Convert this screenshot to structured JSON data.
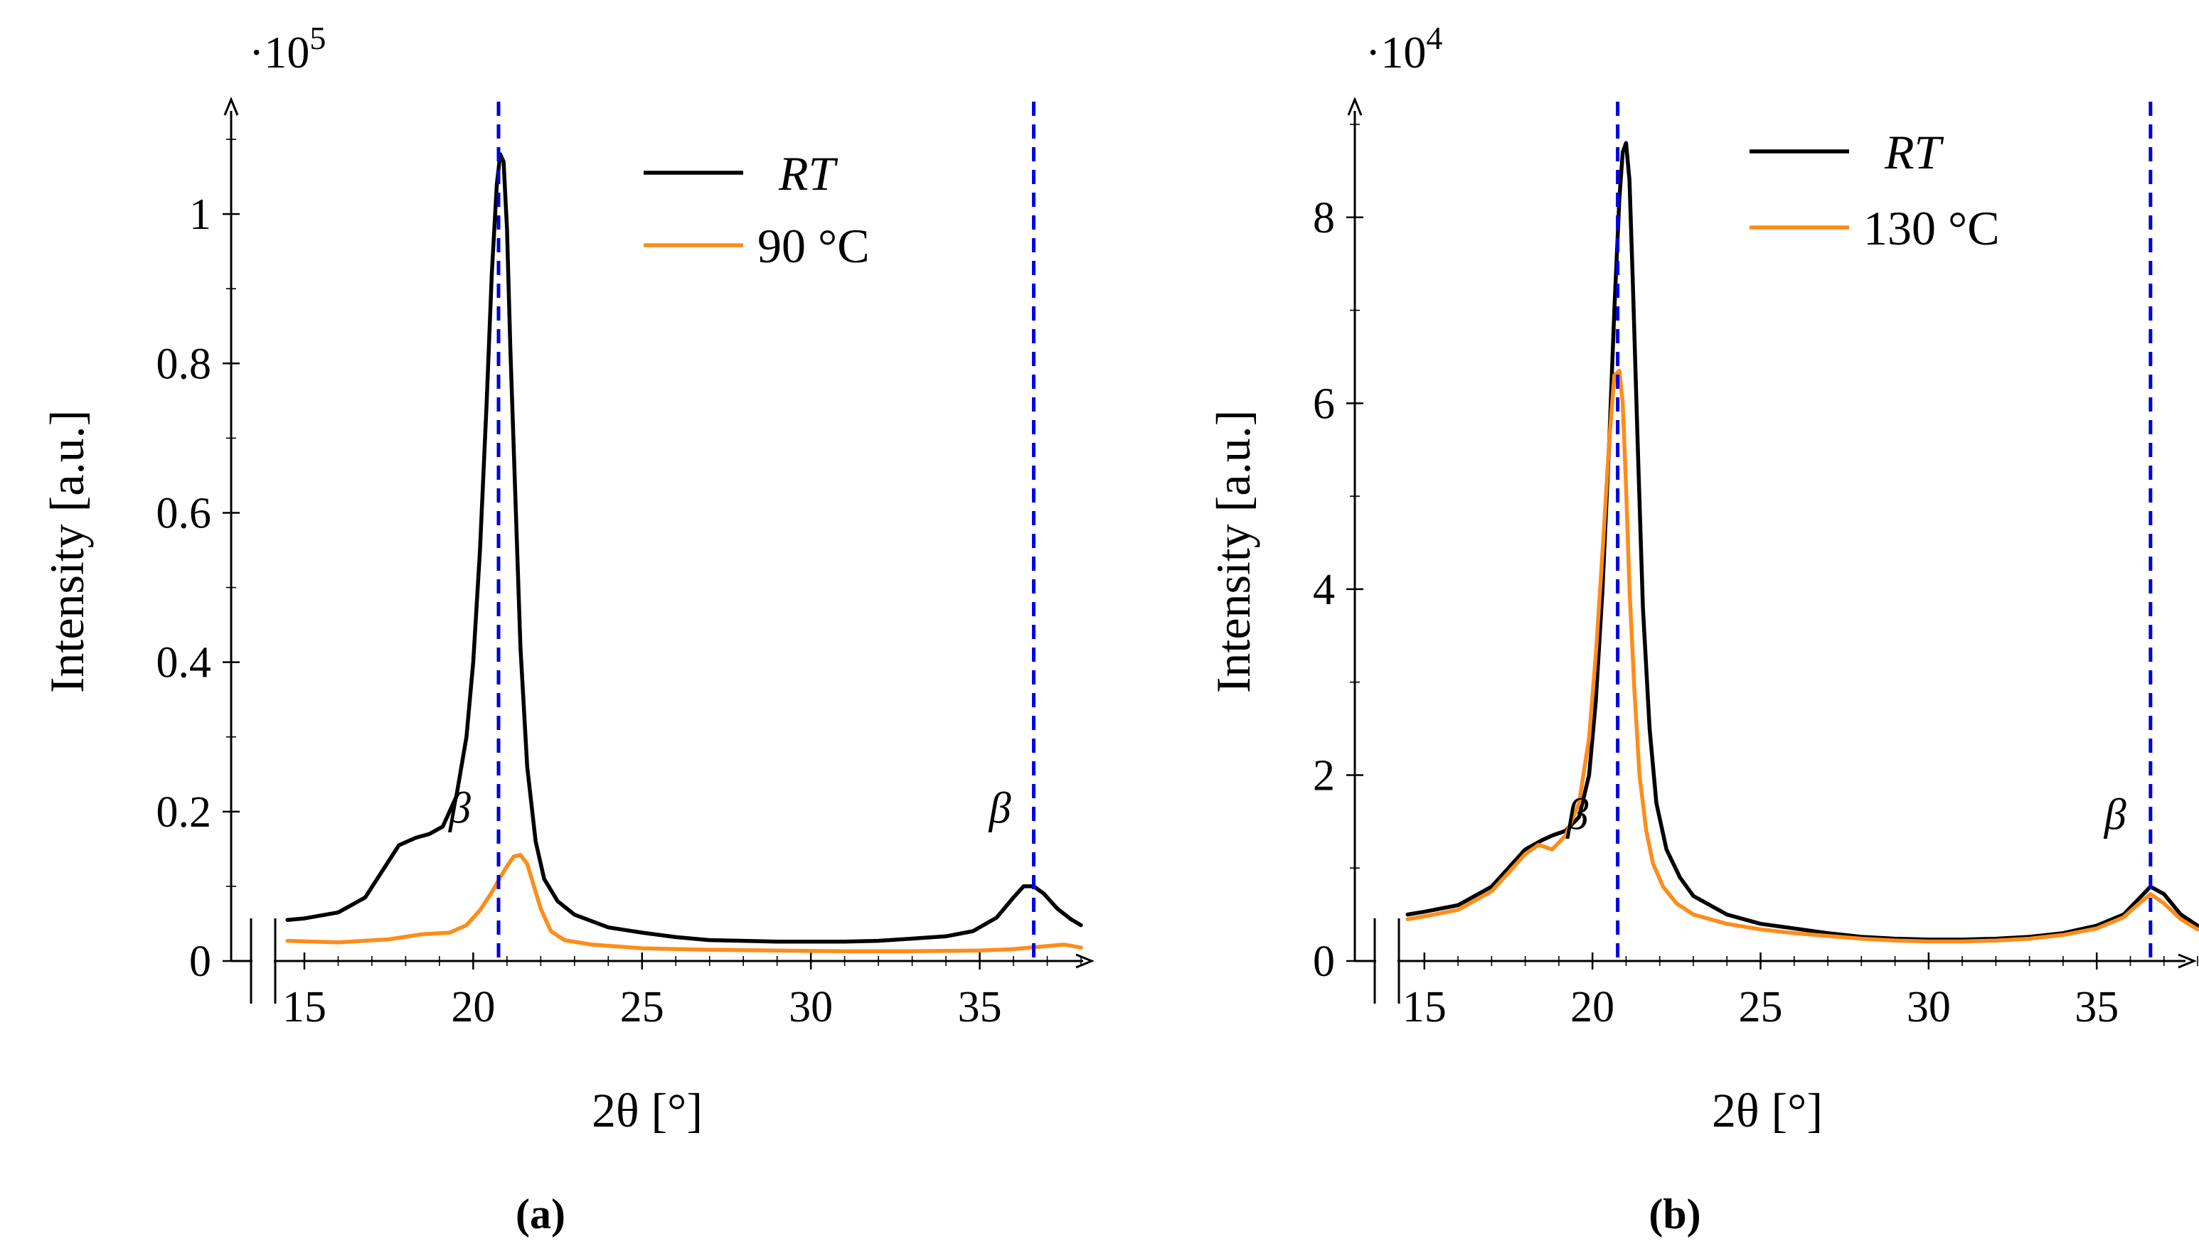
{
  "chart_data": [
    {
      "type": "line",
      "caption": "(a)",
      "caption_letter": "a",
      "multiplier": "·10",
      "multiplier_exp": "5",
      "xlabel": "2θ [°]",
      "ylabel": "Intensity [a.u.]",
      "xlim": [
        14.2,
        38
      ],
      "ylim": [
        0,
        1.12
      ],
      "x_ticks": [
        15,
        20,
        25,
        30,
        35
      ],
      "y_ticks": [
        0,
        0.2,
        0.4,
        0.6,
        0.8,
        1
      ],
      "y_tick_labels": [
        "0",
        "0.2",
        "0.4",
        "0.6",
        "0.8",
        "1"
      ],
      "vlines": [
        20.75,
        36.6
      ],
      "beta_labels": [
        {
          "x": 19.6,
          "y": 0.185,
          "text": "β"
        },
        {
          "x": 35.6,
          "y": 0.185,
          "text": "β"
        }
      ],
      "legend_position": "top-right",
      "series": [
        {
          "name": "RT",
          "italic": true,
          "color": "#000000",
          "x": [
            14.5,
            15,
            16,
            16.8,
            17.3,
            17.8,
            18.3,
            18.7,
            19.1,
            19.5,
            19.8,
            20.0,
            20.2,
            20.4,
            20.55,
            20.7,
            20.8,
            20.9,
            21.0,
            21.1,
            21.25,
            21.4,
            21.6,
            21.85,
            22.1,
            22.5,
            23,
            24,
            25,
            26,
            27,
            28,
            29,
            30,
            31,
            32,
            33,
            34,
            34.8,
            35.5,
            36,
            36.3,
            36.6,
            36.9,
            37.3,
            37.7,
            38
          ],
          "values": [
            0.055,
            0.057,
            0.065,
            0.085,
            0.12,
            0.155,
            0.165,
            0.17,
            0.18,
            0.22,
            0.3,
            0.4,
            0.55,
            0.75,
            0.92,
            1.04,
            1.08,
            1.07,
            0.98,
            0.82,
            0.62,
            0.42,
            0.26,
            0.16,
            0.11,
            0.08,
            0.062,
            0.045,
            0.038,
            0.032,
            0.028,
            0.027,
            0.026,
            0.026,
            0.026,
            0.027,
            0.03,
            0.033,
            0.04,
            0.058,
            0.085,
            0.1,
            0.1,
            0.09,
            0.07,
            0.056,
            0.048
          ]
        },
        {
          "name": "90 °C",
          "italic": false,
          "color": "#ff8c1a",
          "x": [
            14.5,
            16,
            17.5,
            18.5,
            19.3,
            19.8,
            20.2,
            20.55,
            20.8,
            21.0,
            21.2,
            21.4,
            21.6,
            21.8,
            22.0,
            22.3,
            22.7,
            23.5,
            25,
            27,
            29,
            31,
            33,
            35,
            36,
            37,
            37.5,
            38
          ],
          "values": [
            0.027,
            0.025,
            0.029,
            0.036,
            0.038,
            0.048,
            0.068,
            0.092,
            0.112,
            0.127,
            0.14,
            0.142,
            0.13,
            0.1,
            0.07,
            0.04,
            0.028,
            0.022,
            0.017,
            0.015,
            0.014,
            0.013,
            0.013,
            0.014,
            0.016,
            0.02,
            0.022,
            0.018
          ]
        }
      ]
    },
    {
      "type": "line",
      "caption": "(b)",
      "caption_letter": "b",
      "multiplier": "·10",
      "multiplier_exp": "4",
      "xlabel": "2θ [°]",
      "ylabel": "Intensity [a.u.]",
      "xlim": [
        14.2,
        38
      ],
      "ylim": [
        0,
        9
      ],
      "x_ticks": [
        15,
        20,
        25,
        30,
        35
      ],
      "y_ticks": [
        0,
        2,
        4,
        6,
        8
      ],
      "y_tick_labels": [
        "0",
        "2",
        "4",
        "6",
        "8"
      ],
      "vlines": [
        20.75,
        36.6
      ],
      "beta_labels": [
        {
          "x": 19.55,
          "y": 1.42,
          "text": "β"
        },
        {
          "x": 35.55,
          "y": 1.42,
          "text": "β"
        }
      ],
      "legend_position": "top-right",
      "series": [
        {
          "name": "RT",
          "italic": true,
          "color": "#000000",
          "x": [
            14.5,
            15,
            16,
            17,
            17.5,
            18,
            18.5,
            18.8,
            19.2,
            19.6,
            19.9,
            20.1,
            20.3,
            20.5,
            20.65,
            20.8,
            20.9,
            21.0,
            21.1,
            21.2,
            21.35,
            21.5,
            21.7,
            21.9,
            22.2,
            22.6,
            23,
            24,
            25,
            26,
            27,
            28,
            29,
            30,
            31,
            32,
            33,
            34,
            35,
            35.8,
            36.2,
            36.6,
            37,
            37.5,
            38
          ],
          "values": [
            0.5,
            0.53,
            0.6,
            0.8,
            1.0,
            1.2,
            1.3,
            1.35,
            1.4,
            1.55,
            2.0,
            2.8,
            4.0,
            5.6,
            7.0,
            8.2,
            8.7,
            8.8,
            8.4,
            7.3,
            5.5,
            3.8,
            2.5,
            1.7,
            1.2,
            0.9,
            0.7,
            0.5,
            0.4,
            0.35,
            0.3,
            0.26,
            0.24,
            0.23,
            0.23,
            0.24,
            0.26,
            0.3,
            0.38,
            0.5,
            0.65,
            0.8,
            0.72,
            0.5,
            0.38
          ]
        },
        {
          "name": "130 °C",
          "italic": false,
          "color": "#ff8c1a",
          "x": [
            14.5,
            15,
            16,
            17,
            17.5,
            18,
            18.4,
            18.8,
            19.2,
            19.6,
            19.9,
            20.1,
            20.3,
            20.5,
            20.65,
            20.8,
            20.9,
            21.0,
            21.1,
            21.25,
            21.4,
            21.6,
            21.8,
            22.1,
            22.5,
            23,
            24,
            25,
            26,
            27,
            28,
            29,
            30,
            31,
            32,
            33,
            34,
            35,
            35.8,
            36.2,
            36.6,
            37,
            37.5,
            38
          ],
          "values": [
            0.45,
            0.48,
            0.55,
            0.75,
            0.95,
            1.15,
            1.25,
            1.2,
            1.35,
            1.7,
            2.4,
            3.3,
            4.4,
            5.6,
            6.3,
            6.35,
            6.0,
            5.1,
            4.0,
            2.9,
            2.0,
            1.4,
            1.05,
            0.8,
            0.62,
            0.5,
            0.4,
            0.34,
            0.3,
            0.27,
            0.24,
            0.22,
            0.21,
            0.21,
            0.22,
            0.24,
            0.28,
            0.35,
            0.47,
            0.6,
            0.72,
            0.62,
            0.45,
            0.34
          ]
        }
      ]
    }
  ]
}
